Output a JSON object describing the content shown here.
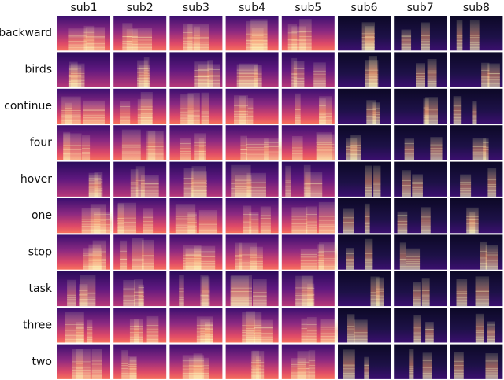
{
  "columns": [
    "sub1",
    "sub2",
    "sub3",
    "sub4",
    "sub5",
    "sub6",
    "sub7",
    "sub8"
  ],
  "rows": [
    "backward",
    "birds",
    "continue",
    "four",
    "hover",
    "one",
    "stop",
    "task",
    "three",
    "two"
  ]
}
